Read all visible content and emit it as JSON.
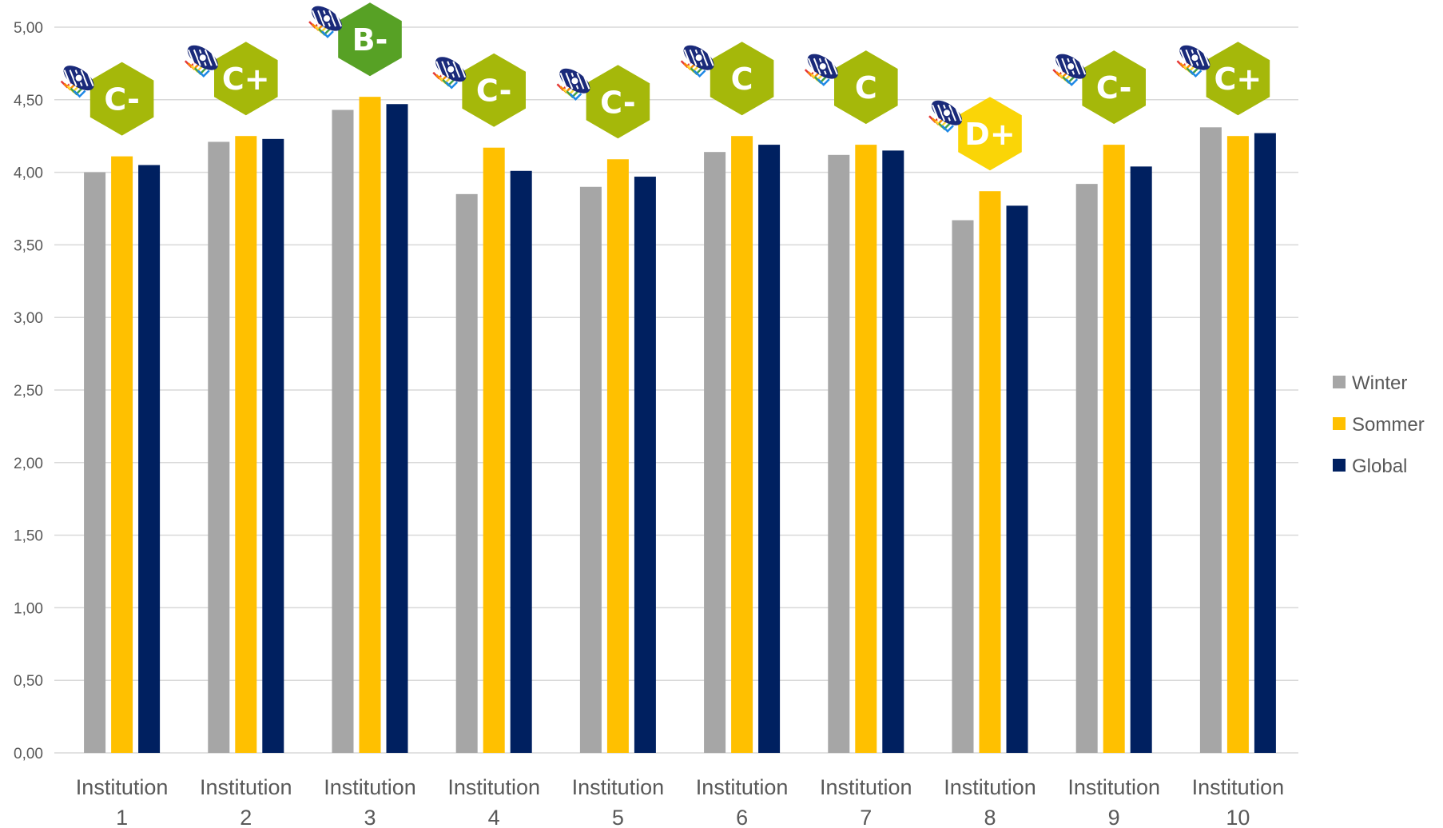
{
  "chart_data": {
    "type": "bar",
    "title": "",
    "xlabel": "",
    "ylabel": "",
    "ylim": [
      0,
      5
    ],
    "ytick_step": 0.5,
    "y_ticks": [
      "0,00",
      "0,50",
      "1,00",
      "1,50",
      "2,00",
      "2,50",
      "3,00",
      "3,50",
      "4,00",
      "4,50",
      "5,00"
    ],
    "grid": true,
    "legend_position": "right",
    "categories": [
      [
        "Institution",
        "1"
      ],
      [
        "Institution",
        "2"
      ],
      [
        "Institution",
        "3"
      ],
      [
        "Institution",
        "4"
      ],
      [
        "Institution",
        "5"
      ],
      [
        "Institution",
        "6"
      ],
      [
        "Institution",
        "7"
      ],
      [
        "Institution",
        "8"
      ],
      [
        "Institution",
        "9"
      ],
      [
        "Institution",
        "10"
      ]
    ],
    "series": [
      {
        "name": "Winter",
        "color": "#a6a6a6",
        "values": [
          4.0,
          4.21,
          4.43,
          3.85,
          3.9,
          4.14,
          4.12,
          3.67,
          3.92,
          4.31
        ]
      },
      {
        "name": "Sommer",
        "color": "#ffc000",
        "values": [
          4.11,
          4.25,
          4.52,
          4.17,
          4.09,
          4.25,
          4.19,
          3.87,
          4.19,
          4.25
        ]
      },
      {
        "name": "Global",
        "color": "#002060",
        "values": [
          4.05,
          4.23,
          4.47,
          4.01,
          3.97,
          4.19,
          4.15,
          3.77,
          4.04,
          4.27
        ]
      }
    ],
    "grade_badges": [
      {
        "grade": "C-",
        "color": "#a5b80a",
        "icon": "bee-icon"
      },
      {
        "grade": "C+",
        "color": "#a5b80a",
        "icon": "bee-icon"
      },
      {
        "grade": "B-",
        "color": "#57a125",
        "icon": "bee-icon"
      },
      {
        "grade": "C-",
        "color": "#a5b80a",
        "icon": "bee-icon"
      },
      {
        "grade": "C-",
        "color": "#a5b80a",
        "icon": "bee-icon"
      },
      {
        "grade": "C",
        "color": "#a5b80a",
        "icon": "bee-icon"
      },
      {
        "grade": "C",
        "color": "#a5b80a",
        "icon": "bee-icon"
      },
      {
        "grade": "D+",
        "color": "#fad507",
        "icon": "bee-icon"
      },
      {
        "grade": "C-",
        "color": "#a5b80a",
        "icon": "bee-icon"
      },
      {
        "grade": "C+",
        "color": "#a5b80a",
        "icon": "bee-icon"
      }
    ]
  },
  "colors": {
    "gridline": "#d9d9d9",
    "axis_text": "#595959",
    "bee_stripe": "#1a2a7a"
  }
}
